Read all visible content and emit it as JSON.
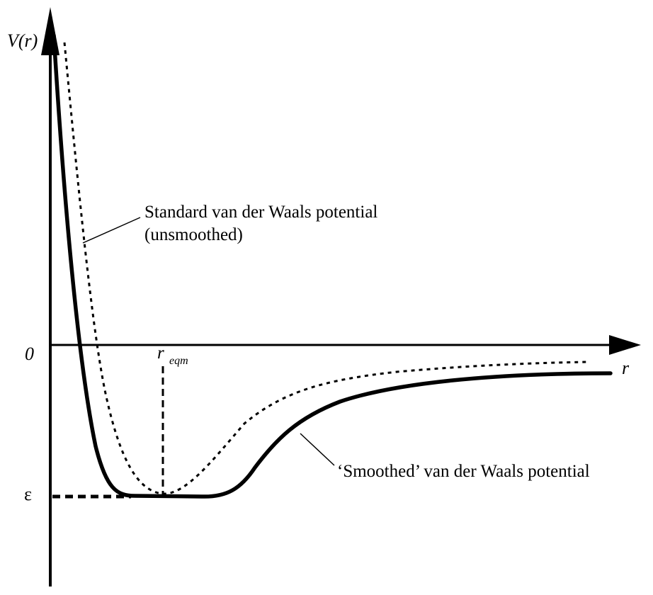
{
  "axes": {
    "y_label": "V(r)",
    "x_label": "r",
    "zero_label": "0",
    "epsilon_label": "ε",
    "r_eqm_main": "r",
    "r_eqm_sub": "eqm"
  },
  "curves": {
    "standard": {
      "line1": "Standard van der Waals potential",
      "line2": "(unsmoothed)",
      "style": "dotted"
    },
    "smoothed": {
      "label": "‘Smoothed’ van der Waals potential",
      "style": "solid"
    }
  },
  "colors": {
    "ink": "#000000",
    "background": "#ffffff"
  }
}
